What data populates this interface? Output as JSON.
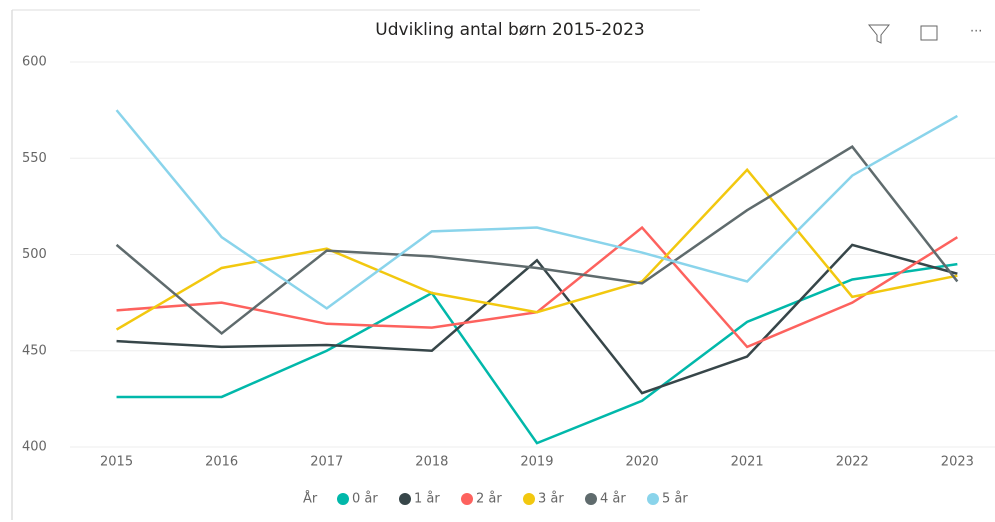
{
  "chart_data": {
    "type": "line",
    "title": "Udvikling antal børn 2015-2023",
    "categories": [
      "2015",
      "2016",
      "2017",
      "2018",
      "2019",
      "2020",
      "2021",
      "2022",
      "2023"
    ],
    "legend_title": "År",
    "series": [
      {
        "name": "0 år",
        "color": "#01B8AA",
        "values": [
          426,
          426,
          450,
          480,
          402,
          424,
          465,
          487,
          495
        ]
      },
      {
        "name": "1 år",
        "color": "#374649",
        "values": [
          455,
          452,
          453,
          450,
          497,
          428,
          447,
          505,
          490
        ]
      },
      {
        "name": "2 år",
        "color": "#FD625E",
        "values": [
          471,
          475,
          464,
          462,
          470,
          514,
          452,
          475,
          509
        ]
      },
      {
        "name": "3 år",
        "color": "#F2C80F",
        "values": [
          461,
          493,
          503,
          480,
          470,
          486,
          544,
          478,
          489
        ]
      },
      {
        "name": "4 år",
        "color": "#5F6B6D",
        "values": [
          505,
          459,
          502,
          499,
          493,
          485,
          523,
          556,
          486
        ]
      },
      {
        "name": "5 år",
        "color": "#8AD4EB",
        "values": [
          575,
          509,
          472,
          512,
          514,
          501,
          486,
          541,
          572
        ]
      }
    ],
    "ylim": [
      400,
      600
    ],
    "yticks": [
      400,
      450,
      500,
      550,
      600
    ],
    "grid": true,
    "legend": "bottom"
  }
}
